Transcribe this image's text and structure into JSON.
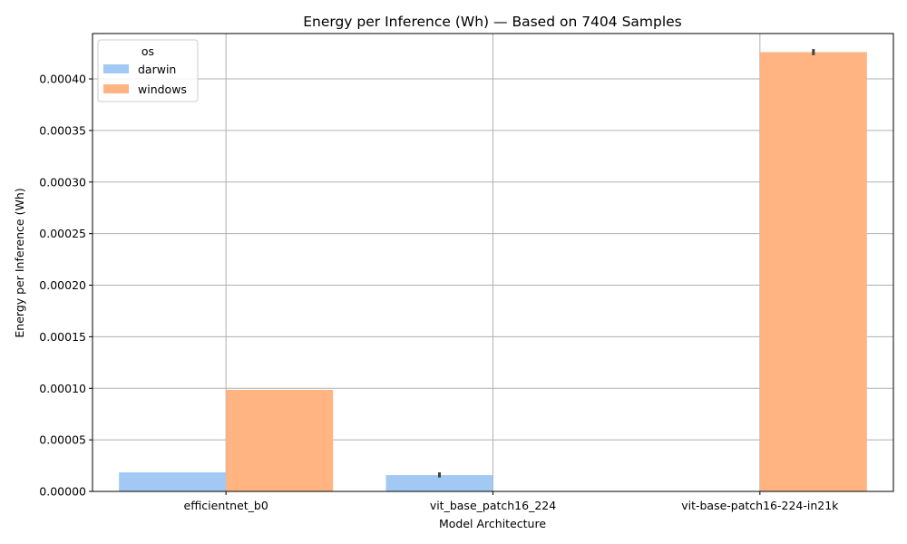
{
  "chart_data": {
    "type": "bar",
    "title": "Energy per Inference (Wh) — Based on 7404 Samples",
    "xlabel": "Model Architecture",
    "ylabel": "Energy per Inference (Wh)",
    "categories": [
      "efficientnet_b0",
      "vit_base_patch16_224",
      "vit-base-patch16-224-in21k"
    ],
    "series": [
      {
        "name": "darwin",
        "color": "#a1c9f4",
        "values": [
          1.85e-05,
          1.58e-05,
          null
        ],
        "err_low": [
          null,
          1.35e-05,
          null
        ],
        "err_high": [
          null,
          1.85e-05,
          null
        ]
      },
      {
        "name": "windows",
        "color": "#ffb482",
        "values": [
          9.85e-05,
          null,
          0.000426
        ],
        "err_low": [
          null,
          null,
          0.000423
        ],
        "err_high": [
          null,
          null,
          0.000429
        ]
      }
    ],
    "ylim": [
      0,
      0.000444
    ],
    "yticks": [
      0,
      5e-05,
      0.0001,
      0.00015,
      0.0002,
      0.00025,
      0.0003,
      0.00035,
      0.0004
    ],
    "ytick_labels": [
      "0.00000",
      "0.00005",
      "0.00010",
      "0.00015",
      "0.00020",
      "0.00025",
      "0.00030",
      "0.00035",
      "0.00040"
    ],
    "grid": true,
    "legend": {
      "title": "os",
      "position": "top-left"
    }
  }
}
